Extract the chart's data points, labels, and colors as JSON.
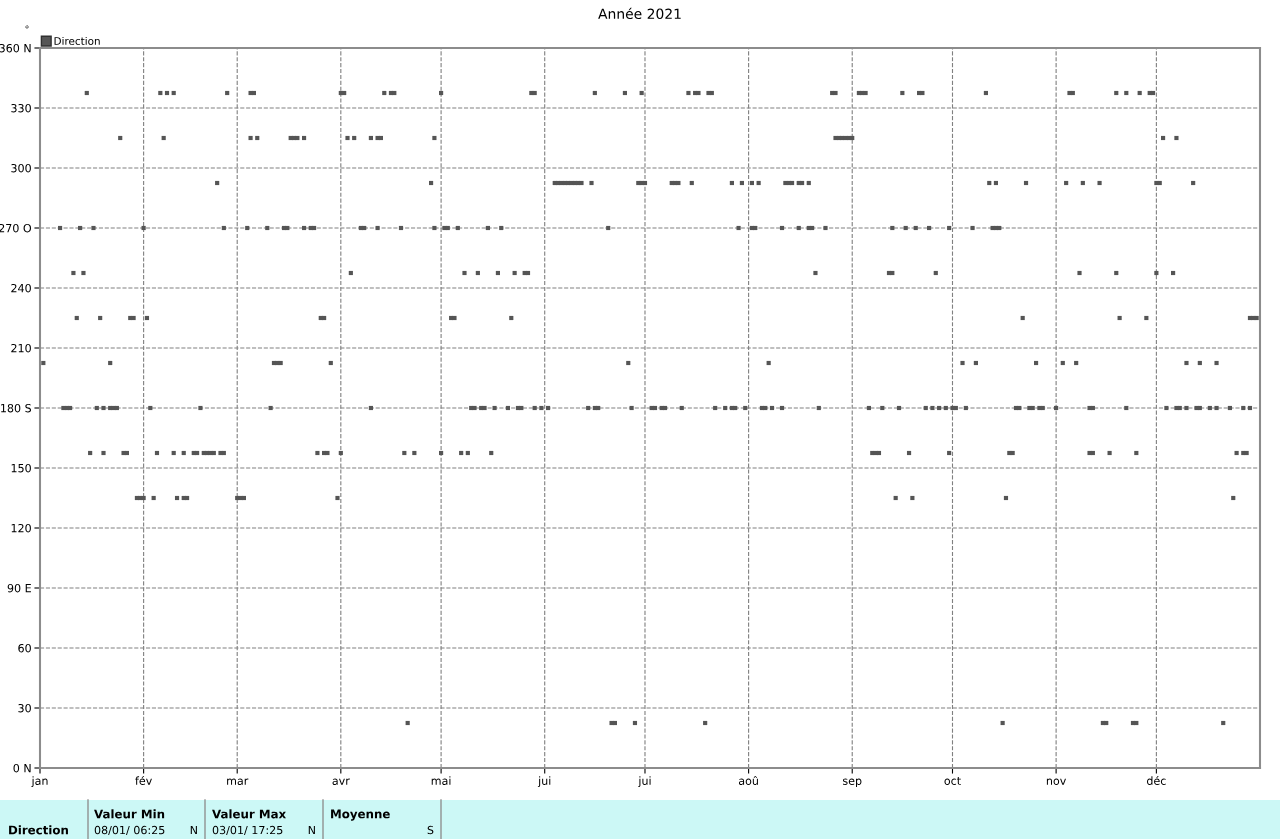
{
  "chart_data": {
    "type": "scatter",
    "title": "Année 2021",
    "ylabel": "°",
    "legend": "top left",
    "grid": true,
    "line_style": "dashed",
    "marker": "square",
    "xlim": [
      "2021-01-01",
      "2022-01-01"
    ],
    "xticks": [
      {
        "value": "2021-01-01",
        "label": "jan"
      },
      {
        "value": "2021-02-01",
        "label": "fév"
      },
      {
        "value": "2021-03-01",
        "label": "mar"
      },
      {
        "value": "2021-04-01",
        "label": "avr"
      },
      {
        "value": "2021-05-01",
        "label": "mai"
      },
      {
        "value": "2021-06-01",
        "label": "jui"
      },
      {
        "value": "2021-07-01",
        "label": "jui"
      },
      {
        "value": "2021-08-01",
        "label": "aoû"
      },
      {
        "value": "2021-09-01",
        "label": "sep"
      },
      {
        "value": "2021-10-01",
        "label": "oct"
      },
      {
        "value": "2021-11-01",
        "label": "nov"
      },
      {
        "value": "2021-12-01",
        "label": "déc"
      }
    ],
    "ylim": [
      0,
      360
    ],
    "yticks": [
      {
        "value": 0,
        "label": "0 N"
      },
      30,
      60,
      {
        "value": 90,
        "label": "90 E"
      },
      120,
      150,
      {
        "value": 180,
        "label": "180 S"
      },
      210,
      240,
      {
        "value": 270,
        "label": "270 O"
      },
      300,
      330,
      {
        "value": 360,
        "label": "360 N"
      }
    ],
    "annotations": [
      "Direction",
      "Valeur Min",
      "08/01/ 06:25",
      "N",
      "Valeur Max",
      "03/01/ 17:25",
      "N",
      "Moyenne",
      "S"
    ],
    "series": [
      {
        "name": "Direction",
        "color": "#555555",
        "x": [
          "2021-01-15",
          "2021-02-06",
          "2021-02-08",
          "2021-02-10",
          "2021-02-26",
          "2021-03-05",
          "2021-03-06",
          "2021-04-01",
          "2021-04-02",
          "2021-04-14",
          "2021-04-16",
          "2021-04-17",
          "2021-05-01",
          "2021-05-28",
          "2021-05-29",
          "2021-06-16",
          "2021-06-25",
          "2021-06-30",
          "2021-07-14",
          "2021-07-16",
          "2021-07-17",
          "2021-07-20",
          "2021-07-21",
          "2021-08-26",
          "2021-08-27",
          "2021-09-03",
          "2021-09-04",
          "2021-09-05",
          "2021-09-16",
          "2021-09-21",
          "2021-09-22",
          "2021-10-11",
          "2021-11-05",
          "2021-11-06",
          "2021-11-19",
          "2021-11-22",
          "2021-11-26",
          "2021-11-29",
          "2021-11-30",
          "2021-01-25",
          "2021-02-07",
          "2021-03-05",
          "2021-03-07",
          "2021-03-17",
          "2021-03-18",
          "2021-03-19",
          "2021-03-21",
          "2021-04-03",
          "2021-04-05",
          "2021-04-10",
          "2021-04-12",
          "2021-04-13",
          "2021-04-29",
          "2021-08-27",
          "2021-08-28",
          "2021-08-29",
          "2021-08-30",
          "2021-08-31",
          "2021-09-01",
          "2021-12-03",
          "2021-12-07",
          "2021-02-23",
          "2021-04-28",
          "2021-06-04",
          "2021-06-05",
          "2021-06-06",
          "2021-06-07",
          "2021-06-08",
          "2021-06-09",
          "2021-06-10",
          "2021-06-11",
          "2021-06-12",
          "2021-06-15",
          "2021-06-29",
          "2021-06-30",
          "2021-07-01",
          "2021-07-09",
          "2021-07-10",
          "2021-07-11",
          "2021-07-15",
          "2021-07-27",
          "2021-07-30",
          "2021-08-02",
          "2021-08-04",
          "2021-08-12",
          "2021-08-13",
          "2021-08-14",
          "2021-08-16",
          "2021-08-17",
          "2021-08-19",
          "2021-10-12",
          "2021-10-14",
          "2021-10-23",
          "2021-11-04",
          "2021-11-09",
          "2021-11-14",
          "2021-12-01",
          "2021-12-02",
          "2021-12-12",
          "2021-01-07",
          "2021-01-13",
          "2021-01-17",
          "2021-02-01",
          "2021-02-25",
          "2021-03-04",
          "2021-03-10",
          "2021-03-15",
          "2021-03-16",
          "2021-03-21",
          "2021-03-23",
          "2021-03-24",
          "2021-04-07",
          "2021-04-08",
          "2021-04-12",
          "2021-04-19",
          "2021-04-29",
          "2021-05-02",
          "2021-05-03",
          "2021-05-06",
          "2021-05-15",
          "2021-05-19",
          "2021-06-20",
          "2021-07-29",
          "2021-08-02",
          "2021-08-03",
          "2021-08-11",
          "2021-08-16",
          "2021-08-19",
          "2021-08-20",
          "2021-08-24",
          "2021-09-13",
          "2021-09-17",
          "2021-09-20",
          "2021-09-24",
          "2021-09-30",
          "2021-10-07",
          "2021-10-13",
          "2021-10-14",
          "2021-10-15",
          "2021-01-11",
          "2021-01-14",
          "2021-04-04",
          "2021-05-08",
          "2021-05-12",
          "2021-05-18",
          "2021-05-23",
          "2021-05-26",
          "2021-05-27",
          "2021-08-21",
          "2021-09-12",
          "2021-09-13",
          "2021-09-26",
          "2021-11-08",
          "2021-11-19",
          "2021-12-01",
          "2021-12-06",
          "2021-01-12",
          "2021-01-19",
          "2021-01-28",
          "2021-01-29",
          "2021-02-02",
          "2021-03-26",
          "2021-03-27",
          "2021-05-04",
          "2021-05-05",
          "2021-05-22",
          "2021-10-22",
          "2021-11-20",
          "2021-11-28",
          "2021-12-29",
          "2021-12-30",
          "2021-12-31",
          "2021-01-02",
          "2021-01-22",
          "2021-03-12",
          "2021-03-13",
          "2021-03-14",
          "2021-03-29",
          "2021-06-26",
          "2021-08-07",
          "2021-10-04",
          "2021-10-08",
          "2021-10-26",
          "2021-11-03",
          "2021-11-07",
          "2021-12-10",
          "2021-12-14",
          "2021-12-19",
          "2021-01-08",
          "2021-01-09",
          "2021-01-10",
          "2021-01-18",
          "2021-01-20",
          "2021-01-22",
          "2021-01-23",
          "2021-01-24",
          "2021-02-03",
          "2021-02-18",
          "2021-03-11",
          "2021-04-10",
          "2021-05-10",
          "2021-05-11",
          "2021-05-13",
          "2021-05-14",
          "2021-05-17",
          "2021-05-21",
          "2021-05-24",
          "2021-05-25",
          "2021-05-29",
          "2021-05-31",
          "2021-06-02",
          "2021-06-14",
          "2021-06-16",
          "2021-06-17",
          "2021-06-27",
          "2021-07-03",
          "2021-07-04",
          "2021-07-06",
          "2021-07-07",
          "2021-07-12",
          "2021-07-22",
          "2021-07-25",
          "2021-07-27",
          "2021-07-28",
          "2021-07-31",
          "2021-08-05",
          "2021-08-06",
          "2021-08-08",
          "2021-08-11",
          "2021-08-22",
          "2021-09-06",
          "2021-09-10",
          "2021-09-15",
          "2021-09-23",
          "2021-09-25",
          "2021-09-27",
          "2021-09-29",
          "2021-10-01",
          "2021-10-02",
          "2021-10-05",
          "2021-10-20",
          "2021-10-21",
          "2021-10-24",
          "2021-10-25",
          "2021-10-27",
          "2021-10-28",
          "2021-11-01",
          "2021-11-11",
          "2021-11-12",
          "2021-11-22",
          "2021-12-04",
          "2021-12-07",
          "2021-12-08",
          "2021-12-10",
          "2021-12-13",
          "2021-12-14",
          "2021-12-17",
          "2021-12-19",
          "2021-12-23",
          "2021-12-27",
          "2021-12-29",
          "2021-01-16",
          "2021-01-20",
          "2021-01-26",
          "2021-01-27",
          "2021-02-05",
          "2021-02-10",
          "2021-02-13",
          "2021-02-16",
          "2021-02-17",
          "2021-02-19",
          "2021-02-20",
          "2021-02-21",
          "2021-02-22",
          "2021-02-24",
          "2021-02-25",
          "2021-03-25",
          "2021-03-27",
          "2021-03-28",
          "2021-04-01",
          "2021-04-20",
          "2021-04-23",
          "2021-05-01",
          "2021-05-07",
          "2021-05-09",
          "2021-05-16",
          "2021-09-07",
          "2021-09-08",
          "2021-09-09",
          "2021-09-18",
          "2021-09-30",
          "2021-10-18",
          "2021-10-19",
          "2021-11-11",
          "2021-11-12",
          "2021-11-17",
          "2021-11-25",
          "2021-12-25",
          "2021-12-27",
          "2021-12-28",
          "2021-01-30",
          "2021-01-31",
          "2021-02-01",
          "2021-02-04",
          "2021-02-11",
          "2021-02-13",
          "2021-02-14",
          "2021-03-01",
          "2021-03-02",
          "2021-03-03",
          "2021-03-31",
          "2021-09-14",
          "2021-09-19",
          "2021-10-17",
          "2021-12-24",
          "2021-04-21",
          "2021-06-21",
          "2021-06-22",
          "2021-06-28",
          "2021-07-19",
          "2021-10-16",
          "2021-11-15",
          "2021-11-16",
          "2021-11-24",
          "2021-11-25",
          "2021-12-21"
        ],
        "values": [
          337.5,
          337.5,
          337.5,
          337.5,
          337.5,
          337.5,
          337.5,
          337.5,
          337.5,
          337.5,
          337.5,
          337.5,
          337.5,
          337.5,
          337.5,
          337.5,
          337.5,
          337.5,
          337.5,
          337.5,
          337.5,
          337.5,
          337.5,
          337.5,
          337.5,
          337.5,
          337.5,
          337.5,
          337.5,
          337.5,
          337.5,
          337.5,
          337.5,
          337.5,
          337.5,
          337.5,
          337.5,
          337.5,
          337.5,
          315,
          315,
          315,
          315,
          315,
          315,
          315,
          315,
          315,
          315,
          315,
          315,
          315,
          315,
          315,
          315,
          315,
          315,
          315,
          315,
          315,
          315,
          292.5,
          292.5,
          292.5,
          292.5,
          292.5,
          292.5,
          292.5,
          292.5,
          292.5,
          292.5,
          292.5,
          292.5,
          292.5,
          292.5,
          292.5,
          292.5,
          292.5,
          292.5,
          292.5,
          292.5,
          292.5,
          292.5,
          292.5,
          292.5,
          292.5,
          292.5,
          292.5,
          292.5,
          292.5,
          292.5,
          292.5,
          292.5,
          292.5,
          292.5,
          292.5,
          292.5,
          292.5,
          292.5,
          270,
          270,
          270,
          270,
          270,
          270,
          270,
          270,
          270,
          270,
          270,
          270,
          270,
          270,
          270,
          270,
          270,
          270,
          270,
          270,
          270,
          270,
          270,
          270,
          270,
          270,
          270,
          270,
          270,
          270,
          270,
          270,
          270,
          270,
          270,
          270,
          270,
          270,
          270,
          270,
          247.5,
          247.5,
          247.5,
          247.5,
          247.5,
          247.5,
          247.5,
          247.5,
          247.5,
          247.5,
          247.5,
          247.5,
          247.5,
          247.5,
          247.5,
          247.5,
          247.5,
          225,
          225,
          225,
          225,
          225,
          225,
          225,
          225,
          225,
          225,
          225,
          225,
          225,
          225,
          225,
          225,
          202.5,
          202.5,
          202.5,
          202.5,
          202.5,
          202.5,
          202.5,
          202.5,
          202.5,
          202.5,
          202.5,
          202.5,
          202.5,
          202.5,
          202.5,
          202.5,
          180,
          180,
          180,
          180,
          180,
          180,
          180,
          180,
          180,
          180,
          180,
          180,
          180,
          180,
          180,
          180,
          180,
          180,
          180,
          180,
          180,
          180,
          180,
          180,
          180,
          180,
          180,
          180,
          180,
          180,
          180,
          180,
          180,
          180,
          180,
          180,
          180,
          180,
          180,
          180,
          180,
          180,
          180,
          180,
          180,
          180,
          180,
          180,
          180,
          180,
          180,
          180,
          180,
          180,
          180,
          180,
          180,
          180,
          180,
          180,
          180,
          180,
          180,
          180,
          180,
          180,
          180,
          180,
          180,
          180,
          180,
          180,
          180,
          157.5,
          157.5,
          157.5,
          157.5,
          157.5,
          157.5,
          157.5,
          157.5,
          157.5,
          157.5,
          157.5,
          157.5,
          157.5,
          157.5,
          157.5,
          157.5,
          157.5,
          157.5,
          157.5,
          157.5,
          157.5,
          157.5,
          157.5,
          157.5,
          157.5,
          157.5,
          157.5,
          157.5,
          157.5,
          157.5,
          157.5,
          157.5,
          157.5,
          157.5,
          157.5,
          157.5,
          157.5,
          157.5,
          157.5,
          135,
          135,
          135,
          135,
          135,
          135,
          135,
          135,
          135,
          135,
          135,
          135,
          135,
          135,
          135,
          22.5,
          22.5,
          22.5,
          22.5,
          22.5,
          22.5,
          22.5,
          22.5,
          22.5,
          22.5,
          22.5
        ]
      }
    ]
  }
}
